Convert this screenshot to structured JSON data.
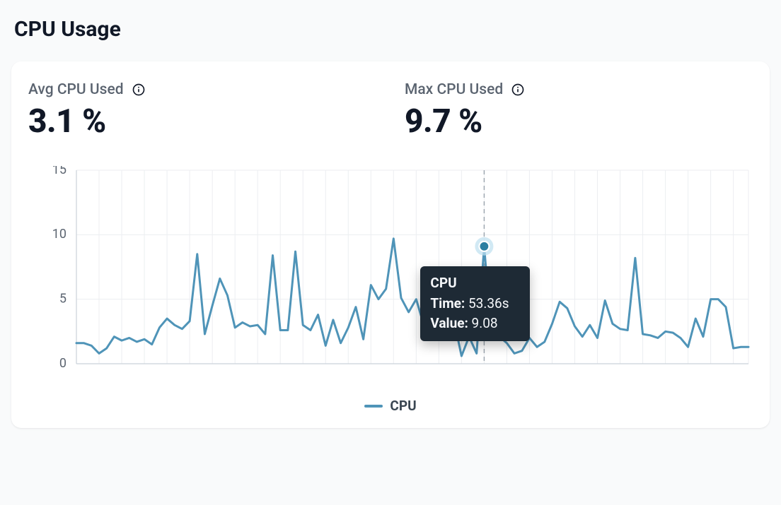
{
  "title": "CPU Usage",
  "metrics": {
    "avg": {
      "label": "Avg CPU Used",
      "value": "3.1 %"
    },
    "max": {
      "label": "Max CPU Used",
      "value": "9.7 %"
    }
  },
  "chart": {
    "type": "line",
    "series_name": "CPU",
    "line_color": "#4f94b8",
    "line_width": 3,
    "marker_color": "#2b7ea1",
    "marker_halo_color": "#bde0ef",
    "background_color": "#ffffff",
    "grid_color": "#eceef1",
    "axis_line_color": "#cbd2d9",
    "tick_label_color": "#5b6470",
    "crosshair_color": "#9aa3ad",
    "ylim": [
      0,
      15
    ],
    "yticks": [
      0,
      5,
      10,
      15
    ],
    "ytick_fontsize": 18,
    "x_count": 90,
    "x_grid_step": 3,
    "values": [
      1.6,
      1.6,
      1.4,
      0.8,
      1.2,
      2.1,
      1.8,
      2.0,
      1.7,
      1.9,
      1.5,
      2.8,
      3.5,
      3.0,
      2.7,
      3.3,
      8.5,
      2.3,
      4.5,
      6.6,
      5.3,
      2.8,
      3.2,
      2.9,
      3.0,
      2.3,
      8.4,
      2.6,
      2.6,
      8.7,
      3.0,
      2.6,
      3.8,
      1.4,
      3.4,
      1.6,
      2.8,
      4.4,
      1.9,
      6.1,
      5.0,
      5.8,
      9.7,
      5.1,
      4.0,
      5.0,
      3.0,
      4.0,
      4.4,
      2.6,
      3.4,
      0.6,
      2.1,
      0.8,
      9.1,
      1.9,
      2.1,
      1.6,
      0.8,
      1.0,
      2.0,
      1.3,
      1.7,
      3.1,
      4.8,
      4.3,
      2.9,
      2.1,
      3.0,
      2.0,
      4.9,
      3.1,
      2.7,
      2.6,
      8.2,
      2.3,
      2.2,
      2.0,
      2.5,
      2.4,
      2.0,
      1.3,
      3.5,
      2.1,
      5.0,
      5.0,
      4.4,
      1.2,
      1.3,
      1.3
    ],
    "hover_index": 54
  },
  "tooltip": {
    "title": "CPU",
    "time_label": "Time:",
    "time_value": "53.36s",
    "value_label": "Value:",
    "value_value": "9.08",
    "background": "#1e2a35",
    "text_color": "#f5f7fa"
  },
  "legend": {
    "label": "CPU"
  }
}
